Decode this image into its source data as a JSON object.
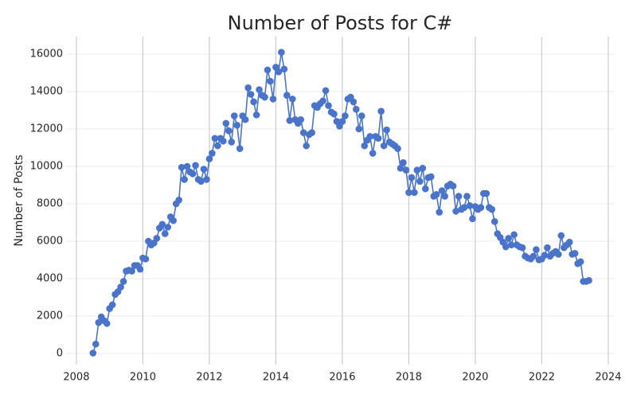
{
  "chart_data": {
    "type": "line",
    "title": "Number of Posts for C#",
    "ylabel": "Number of Posts",
    "x": [
      2008.5,
      2008.583,
      2008.667,
      2008.75,
      2008.833,
      2008.917,
      2009,
      2009.083,
      2009.167,
      2009.25,
      2009.333,
      2009.417,
      2009.5,
      2009.583,
      2009.667,
      2009.75,
      2009.833,
      2009.917,
      2010,
      2010.083,
      2010.167,
      2010.25,
      2010.333,
      2010.417,
      2010.5,
      2010.583,
      2010.667,
      2010.75,
      2010.833,
      2010.917,
      2011,
      2011.083,
      2011.167,
      2011.25,
      2011.333,
      2011.417,
      2011.5,
      2011.583,
      2011.667,
      2011.75,
      2011.833,
      2011.917,
      2012,
      2012.083,
      2012.167,
      2012.25,
      2012.333,
      2012.417,
      2012.5,
      2012.583,
      2012.667,
      2012.75,
      2012.833,
      2012.917,
      2013,
      2013.083,
      2013.167,
      2013.25,
      2013.333,
      2013.417,
      2013.5,
      2013.583,
      2013.667,
      2013.75,
      2013.833,
      2013.917,
      2014,
      2014.083,
      2014.167,
      2014.25,
      2014.333,
      2014.417,
      2014.5,
      2014.583,
      2014.667,
      2014.75,
      2014.833,
      2014.917,
      2015,
      2015.083,
      2015.167,
      2015.25,
      2015.333,
      2015.417,
      2015.5,
      2015.583,
      2015.667,
      2015.75,
      2015.833,
      2015.917,
      2016,
      2016.083,
      2016.167,
      2016.25,
      2016.333,
      2016.417,
      2016.5,
      2016.583,
      2016.667,
      2016.75,
      2016.833,
      2016.917,
      2017,
      2017.083,
      2017.167,
      2017.25,
      2017.333,
      2017.417,
      2017.5,
      2017.583,
      2017.667,
      2017.75,
      2017.833,
      2017.917,
      2018,
      2018.083,
      2018.167,
      2018.25,
      2018.333,
      2018.417,
      2018.5,
      2018.583,
      2018.667,
      2018.75,
      2018.833,
      2018.917,
      2019,
      2019.083,
      2019.167,
      2019.25,
      2019.333,
      2019.417,
      2019.5,
      2019.583,
      2019.667,
      2019.75,
      2019.833,
      2019.917,
      2020,
      2020.083,
      2020.167,
      2020.25,
      2020.333,
      2020.417,
      2020.5,
      2020.583,
      2020.667,
      2020.75,
      2020.833,
      2020.917,
      2021,
      2021.083,
      2021.167,
      2021.25,
      2021.333,
      2021.417,
      2021.5,
      2021.583,
      2021.667,
      2021.75,
      2021.833,
      2021.917,
      2022,
      2022.083,
      2022.167,
      2022.25,
      2022.333,
      2022.417,
      2022.5,
      2022.583,
      2022.667,
      2022.75,
      2022.833,
      2022.917,
      2023,
      2023.083,
      2023.167,
      2023.25,
      2023.333,
      2023.417
    ],
    "series": [
      {
        "color": "#4a74c9",
        "values": [
          20,
          500,
          1650,
          1950,
          1750,
          1600,
          2400,
          2600,
          3150,
          3300,
          3550,
          3850,
          4400,
          4450,
          4400,
          4700,
          4700,
          4500,
          5100,
          5050,
          6000,
          5800,
          5900,
          6150,
          6700,
          6900,
          6400,
          6750,
          7300,
          7100,
          8000,
          8200,
          9950,
          9300,
          10000,
          9700,
          9600,
          10050,
          9300,
          9200,
          9850,
          9300,
          10400,
          10700,
          11500,
          11100,
          11500,
          11350,
          12300,
          11900,
          11300,
          12700,
          12200,
          10950,
          12700,
          12500,
          14200,
          13850,
          13450,
          12750,
          14100,
          13800,
          13700,
          15150,
          14550,
          13600,
          15300,
          15050,
          16100,
          15200,
          13800,
          12450,
          13600,
          12500,
          12300,
          12500,
          11800,
          11100,
          11700,
          11800,
          13250,
          13150,
          13350,
          13500,
          14050,
          13250,
          12900,
          12800,
          12400,
          12150,
          12400,
          12700,
          13600,
          13700,
          13450,
          13050,
          12000,
          12700,
          11100,
          11400,
          11600,
          10700,
          11600,
          11500,
          12950,
          11100,
          11950,
          11300,
          11200,
          11100,
          10950,
          9900,
          10200,
          9800,
          8600,
          9400,
          8600,
          9800,
          9200,
          9900,
          8800,
          9400,
          9450,
          8400,
          8500,
          7550,
          8700,
          8400,
          8950,
          9050,
          8950,
          7600,
          8400,
          7700,
          7800,
          8400,
          7900,
          7200,
          7850,
          7700,
          7800,
          8550,
          8550,
          7800,
          7700,
          7050,
          6400,
          6200,
          5950,
          5700,
          6150,
          5800,
          6350,
          5800,
          5700,
          5650,
          5200,
          5100,
          5050,
          5200,
          5550,
          5000,
          5050,
          5250,
          5650,
          5200,
          5350,
          5450,
          5300,
          6300,
          5650,
          5800,
          5950,
          5300,
          5350,
          4800,
          4900,
          3850,
          3850,
          3900
        ]
      }
    ],
    "xlim": [
      2007.69,
      2024.17
    ],
    "xticks": [
      2008,
      2010,
      2012,
      2014,
      2016,
      2018,
      2020,
      2022,
      2024
    ],
    "ylim": [
      -596,
      16936
    ],
    "yticks": [
      0,
      2000,
      4000,
      6000,
      8000,
      10000,
      12000,
      14000,
      16000
    ],
    "grid": true
  }
}
